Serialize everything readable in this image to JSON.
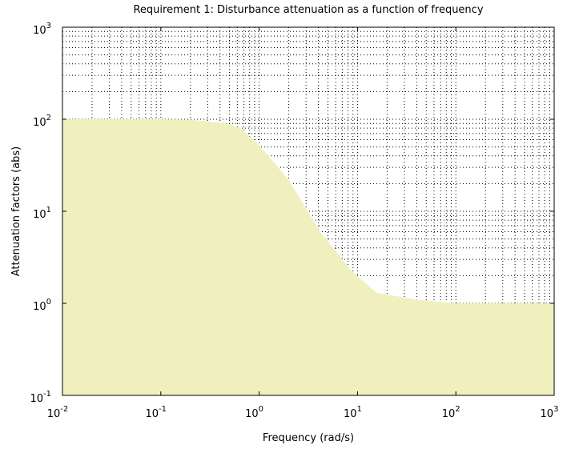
{
  "chart_data": {
    "type": "area",
    "title": "Requirement 1: Disturbance attenuation as a function of frequency",
    "xlabel": "Frequency (rad/s)",
    "ylabel": "Attenuation factors (abs)",
    "xscale": "log",
    "yscale": "log",
    "xlim": [
      0.01,
      1000
    ],
    "ylim": [
      0.1,
      1000
    ],
    "xticks": [
      {
        "value": 0.01,
        "label": "10^-2"
      },
      {
        "value": 0.1,
        "label": "10^-1"
      },
      {
        "value": 1,
        "label": "10^0"
      },
      {
        "value": 10,
        "label": "10^1"
      },
      {
        "value": 100,
        "label": "10^2"
      },
      {
        "value": 1000,
        "label": "10^3"
      }
    ],
    "yticks": [
      {
        "value": 0.1,
        "label": "10^-1"
      },
      {
        "value": 1,
        "label": "10^0"
      },
      {
        "value": 10,
        "label": "10^1"
      },
      {
        "value": 100,
        "label": "10^2"
      },
      {
        "value": 1000,
        "label": "10^3"
      }
    ],
    "grid": true,
    "minor_grid": true,
    "series": [
      {
        "color": "#f0f0bf",
        "x": [
          0.01,
          0.1,
          0.2,
          0.5,
          0.64,
          0.97,
          2.0,
          4.2,
          8.9,
          15.6,
          40,
          100,
          1000
        ],
        "values": [
          100,
          100,
          99,
          89,
          80,
          54,
          22,
          5.9,
          2.2,
          1.3,
          1.1,
          1.0,
          1.0
        ]
      }
    ]
  }
}
